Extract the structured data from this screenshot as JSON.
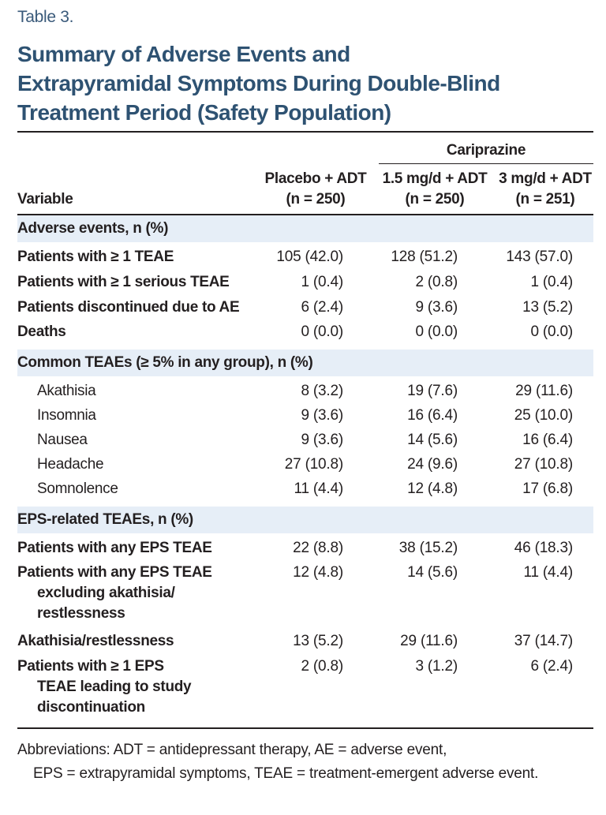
{
  "table_label": "Table 3.",
  "title_lines": [
    "Summary of Adverse Events and",
    "Extrapyramidal Symptoms During Double-Blind",
    "Treatment Period (Safety Population)"
  ],
  "header": {
    "group": "Cariprazine",
    "variable": "Variable",
    "col1_line1": "Placebo + ADT",
    "col1_line2": "(n = 250)",
    "col2_line1": "1.5 mg/d + ADT",
    "col2_line2": "(n = 250)",
    "col3_line1": "3 mg/d + ADT",
    "col3_line2": "(n = 251)"
  },
  "sections": [
    {
      "title": "Adverse events, n (%)",
      "rows": [
        {
          "label": "Patients with ≥ 1 TEAE",
          "values": [
            "105 (42.0)",
            "128 (51.2)",
            "143 (57.0)"
          ]
        },
        {
          "label": "Patients with ≥ 1 serious TEAE",
          "values": [
            "1 (0.4)",
            "2 (0.8)",
            "1 (0.4)"
          ]
        },
        {
          "label": "Patients discontinued due to AE",
          "values": [
            "6 (2.4)",
            "9 (3.6)",
            "13 (5.2)"
          ]
        },
        {
          "label": "Deaths",
          "values": [
            "0 (0.0)",
            "0 (0.0)",
            "0 (0.0)"
          ]
        }
      ]
    },
    {
      "title": "Common TEAEs (≥ 5% in any group), n (%)",
      "rows": [
        {
          "label": "Akathisia",
          "values": [
            "8 (3.2)",
            "19 (7.6)",
            "29 (11.6)"
          ]
        },
        {
          "label": "Insomnia",
          "values": [
            "9 (3.6)",
            "16 (6.4)",
            "25 (10.0)"
          ]
        },
        {
          "label": "Nausea",
          "values": [
            "9 (3.6)",
            "14 (5.6)",
            "16 (6.4)"
          ]
        },
        {
          "label": "Headache",
          "values": [
            "27 (10.8)",
            "24 (9.6)",
            "27 (10.8)"
          ]
        },
        {
          "label": "Somnolence",
          "values": [
            "11 (4.4)",
            "12 (4.8)",
            "17 (6.8)"
          ]
        }
      ]
    },
    {
      "title": "EPS-related TEAEs, n (%)",
      "rows": [
        {
          "label": "Patients with any EPS TEAE",
          "values": [
            "22 (8.8)",
            "38 (15.2)",
            "46 (18.3)"
          ]
        },
        {
          "label_lines": [
            "Patients with any EPS TEAE",
            "excluding akathisia/",
            "restlessness"
          ],
          "values": [
            "12 (4.8)",
            "14 (5.6)",
            "11 (4.4)"
          ]
        },
        {
          "label": "Akathisia/restlessness",
          "values": [
            "13 (5.2)",
            "29 (11.6)",
            "37 (14.7)"
          ]
        },
        {
          "label_lines": [
            "Patients with ≥ 1 EPS",
            "TEAE leading to study",
            "discontinuation"
          ],
          "values": [
            "2 (0.8)",
            "3 (1.2)",
            "6 (2.4)"
          ]
        }
      ]
    }
  ],
  "footnote": {
    "line1": "Abbreviations: ADT = antidepressant therapy, AE = adverse event,",
    "line2": "EPS = extrapyramidal symptoms, TEAE = treatment-emergent adverse event."
  }
}
